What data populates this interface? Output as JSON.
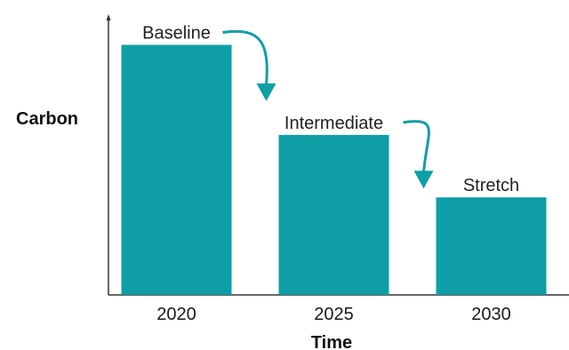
{
  "chart_data": {
    "type": "bar",
    "title": "",
    "xlabel": "Time",
    "ylabel": "Carbon",
    "categories": [
      "2020",
      "2025",
      "2030"
    ],
    "values": [
      100,
      64,
      39
    ],
    "bar_labels": [
      "Baseline",
      "Intermediate",
      "Stretch"
    ],
    "ylim": [
      0,
      108
    ],
    "grid": false,
    "legend": "none",
    "y_tick_labels_shown": false,
    "annotations": [
      {
        "type": "curved-arrow",
        "from": "Baseline",
        "to": "2025"
      },
      {
        "type": "curved-arrow",
        "from": "Intermediate",
        "to": "2030"
      }
    ],
    "colors": {
      "bar": "#0f9ea5",
      "arrow": "#0f9ea5",
      "axis": "#333333"
    }
  }
}
